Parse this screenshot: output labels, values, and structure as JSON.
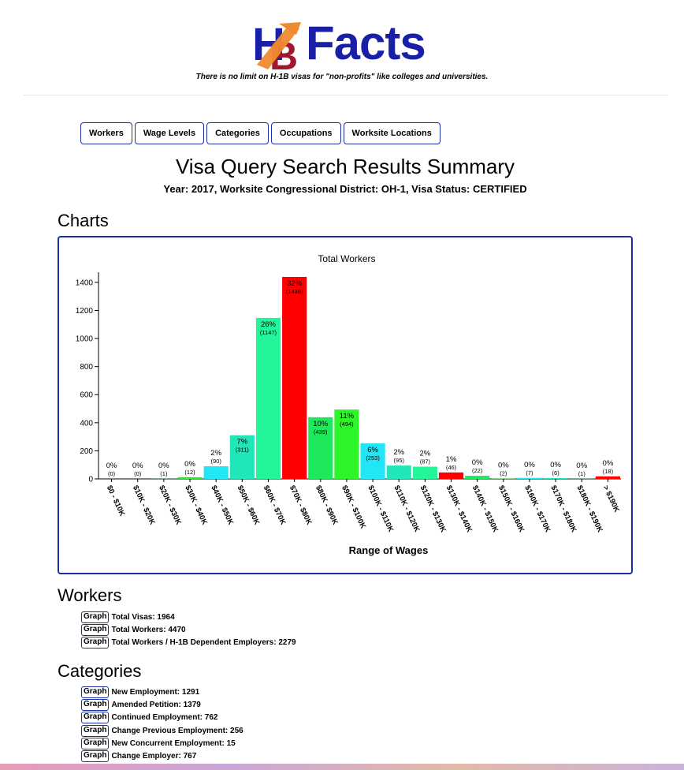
{
  "header": {
    "logo_letters": "HB",
    "logo_text": "Facts",
    "tagline": "There is no limit on H-1B visas for \"non-profits\" like colleges and universities."
  },
  "tabs": [
    {
      "label": "Workers"
    },
    {
      "label": "Wage Levels"
    },
    {
      "label": "Categories"
    },
    {
      "label": "Occupations"
    },
    {
      "label": "Worksite Locations"
    }
  ],
  "page": {
    "title": "Visa Query Search Results Summary",
    "subtitle_year_label": "Year:",
    "subtitle_year": "2017",
    "subtitle_district_label": ", Worksite Congressional District:",
    "subtitle_district": "OH-1",
    "subtitle_status_label": ", Visa Status:",
    "subtitle_status": "CERTIFIED",
    "charts_heading": "Charts",
    "workers_heading": "Workers",
    "categories_heading": "Categories"
  },
  "chart_data": {
    "type": "bar",
    "title": "Total Workers",
    "xlabel": "Range of Wages",
    "ylabel": "",
    "ylim": [
      0,
      1450
    ],
    "yticks": [
      "0",
      "200",
      "400",
      "600",
      "800",
      "1000",
      "1200",
      "1400"
    ],
    "categories": [
      "$0 - $10K",
      "$10K - $20K",
      "$20K - $30K",
      "$30K - $40K",
      "$40K - $50K",
      "$50K - $60K",
      "$60K - $70K",
      "$70K - $80K",
      "$80K - $90K",
      "$90K - $100K",
      "$100K - $110K",
      "$110K - $120K",
      "$120K - $130K",
      "$130K - $140K",
      "$140K - $150K",
      "$150K - $160K",
      "$160K - $170K",
      "$170K - $180K",
      "$180K - $190K",
      "> $190K"
    ],
    "values": [
      0,
      0,
      1,
      12,
      90,
      311,
      1147,
      1439,
      439,
      494,
      253,
      95,
      87,
      46,
      22,
      2,
      7,
      6,
      1,
      18
    ],
    "percent_labels": [
      "0%",
      "0%",
      "0%",
      "0%",
      "2%",
      "7%",
      "26%",
      "32%",
      "10%",
      "11%",
      "6%",
      "2%",
      "2%",
      "1%",
      "0%",
      "0%",
      "0%",
      "0%",
      "0%",
      "0%"
    ],
    "count_labels": [
      "(0)",
      "(0)",
      "(1)",
      "(12)",
      "(90)",
      "(311)",
      "(1147)",
      "(1439)",
      "(439)",
      "(494)",
      "(253)",
      "(95)",
      "(87)",
      "(46)",
      "(22)",
      "(2)",
      "(7)",
      "(6)",
      "(1)",
      "(18)"
    ],
    "colors": [
      "#1ff29a",
      "#1ff29a",
      "#1ee85c",
      "#2ee82c",
      "#22e5f5",
      "#20e6b8",
      "#22f59a",
      "#ff0000",
      "#1ee85c",
      "#2ef52a",
      "#22e5f5",
      "#20e6b8",
      "#22f59a",
      "#ff0000",
      "#1ee85c",
      "#2ee82c",
      "#22e5f5",
      "#20e6b8",
      "#22f59a",
      "#ff0000"
    ],
    "grid": false,
    "legend": "none"
  },
  "workers": {
    "graph_label": "Graph",
    "items": [
      {
        "label": "Total Visas: 1964"
      },
      {
        "label": "Total Workers: 4470"
      },
      {
        "label": "Total Workers / H-1B Dependent Employers: 2279"
      }
    ]
  },
  "categories": {
    "graph_label": "Graph",
    "items": [
      {
        "label": "New Employment: 1291"
      },
      {
        "label": "Amended Petition: 1379"
      },
      {
        "label": "Continued Employment: 762"
      },
      {
        "label": "Change Previous Employment: 256"
      },
      {
        "label": "New Concurrent Employment: 15"
      },
      {
        "label": "Change Employer: 767"
      }
    ]
  },
  "colors": {
    "accent": "#1a2fa0",
    "logo_blue": "#1a1fa8",
    "logo_orange": "#f08a30",
    "logo_red": "#a01830"
  }
}
